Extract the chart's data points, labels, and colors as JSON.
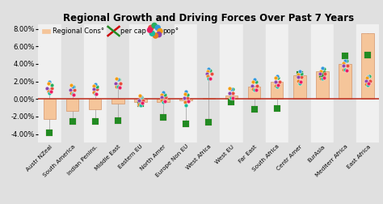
{
  "title": "Regional Growth and Driving Forces Over Past 7 Years",
  "categories": [
    "Austr NZeal",
    "South America",
    "Indian Penins.",
    "Middle East",
    "Eastern EU",
    "North Amer",
    "Europe Non EU",
    "West Africa",
    "West EU",
    "Far East",
    "South Africa",
    "Centr Amer",
    "EurAsia",
    "Mediterr Africa",
    "East Africa"
  ],
  "bar_values": [
    -2.3,
    -1.4,
    -1.2,
    -0.5,
    -0.3,
    -0.3,
    -0.2,
    0.1,
    0.4,
    1.4,
    2.0,
    2.7,
    3.2,
    4.0,
    7.5
  ],
  "per_cap": [
    -3.9,
    -2.6,
    -2.6,
    -2.5,
    -0.5,
    -2.1,
    -2.8,
    -2.7,
    -0.3,
    -1.2,
    -1.1,
    2.8,
    2.8,
    4.9,
    5.0
  ],
  "pop": [
    1.25,
    1.0,
    1.1,
    1.8,
    -0.15,
    0.2,
    0.1,
    2.9,
    0.7,
    1.5,
    2.0,
    2.5,
    2.9,
    3.8,
    2.1
  ],
  "bar_color": "#F5C59A",
  "bar_edgecolor": "#D4956A",
  "zero_line_color": "#C0392B",
  "bg_color": "#E0E0E0",
  "stripe_color": "#F0F0F0",
  "ylim_low": -5.0,
  "ylim_high": 8.5,
  "yticks": [
    -4.0,
    -2.0,
    0.0,
    2.0,
    4.0,
    6.0,
    8.0
  ],
  "legend_items": [
    "Regional Cons°",
    "per cap",
    "pop°"
  ],
  "balloon_colors": [
    "#E74C3C",
    "#27AE60",
    "#3498DB",
    "#F39C12",
    "#8E44AD",
    "#E67E22",
    "#1ABC9C",
    "#E91E63"
  ],
  "fork_color": "#CC0000",
  "knife_color": "#228B22"
}
